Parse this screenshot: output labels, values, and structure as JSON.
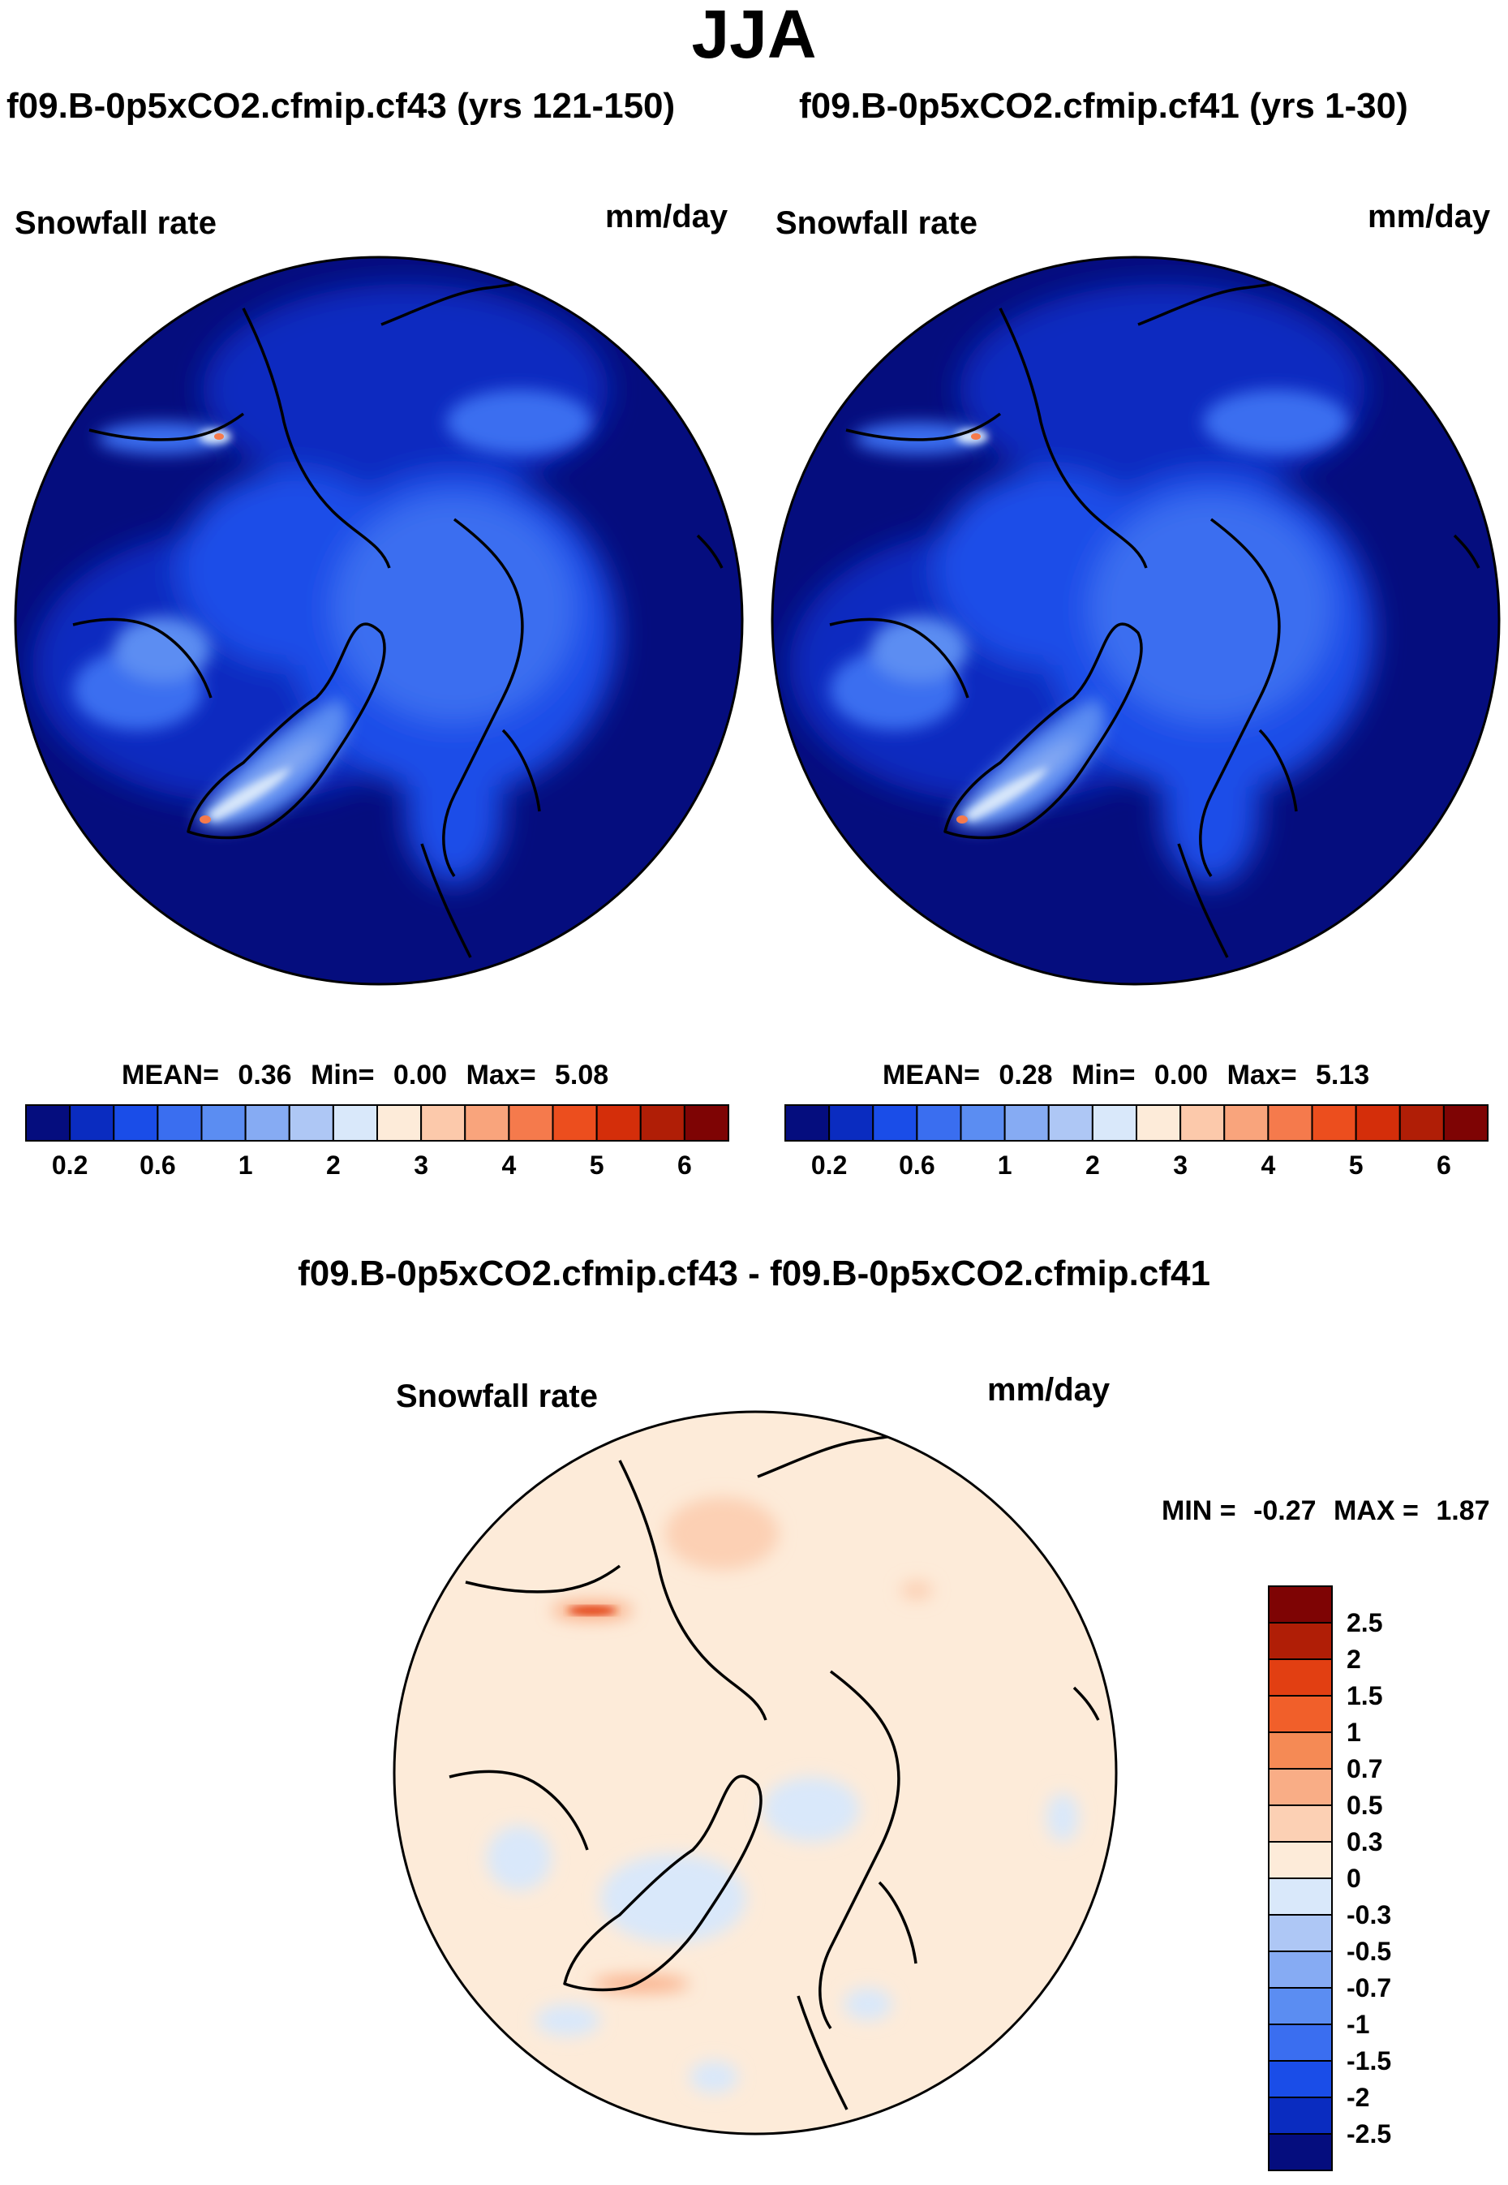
{
  "figure": {
    "season": "JJA",
    "left_title": "f09.B-0p5xCO2.cfmip.cf43 (yrs 121-150)",
    "right_title": "f09.B-0p5xCO2.cfmip.cf41 (yrs 1-30)",
    "diff_title": "f09.B-0p5xCO2.cfmip.cf43 - f09.B-0p5xCO2.cfmip.cf41"
  },
  "panels": {
    "left": {
      "variable": "Snowfall rate",
      "units": "mm/day",
      "stats": {
        "mean_label": "MEAN=",
        "mean": "0.36",
        "min_label": "Min=",
        "min": "0.00",
        "max_label": "Max=",
        "max": "5.08"
      }
    },
    "right": {
      "variable": "Snowfall rate",
      "units": "mm/day",
      "stats": {
        "mean_label": "MEAN=",
        "mean": "0.28",
        "min_label": "Min=",
        "min": "0.00",
        "max_label": "Max=",
        "max": "5.13"
      }
    },
    "diff": {
      "variable": "Snowfall rate",
      "units": "mm/day",
      "stats": {
        "min_label": "MIN =",
        "min": "-0.27",
        "max_label": "MAX =",
        "max": "1.87"
      }
    }
  },
  "colorbar_abs": {
    "colors": [
      "#050d7e",
      "#0a2cc0",
      "#1a4de8",
      "#3a6ef0",
      "#5b8df2",
      "#86abf3",
      "#aec7f5",
      "#d9e8fa",
      "#fdebd9",
      "#fcc9ab",
      "#f9a47c",
      "#f57a4c",
      "#ec4e1e",
      "#d42e0a",
      "#b01e06",
      "#7e0404"
    ],
    "tick_labels": [
      "0.2",
      "0.6",
      "1",
      "2",
      "3",
      "4",
      "5",
      "6"
    ]
  },
  "colorbar_diff": {
    "colors": [
      "#7e0404",
      "#b01e06",
      "#e23f12",
      "#f15f2a",
      "#f58a55",
      "#f9ad86",
      "#fcd0b4",
      "#fdebd9",
      "#d9e8fa",
      "#aec7f5",
      "#86abf3",
      "#5b8df2",
      "#3a6ef0",
      "#1a4de8",
      "#0a2cc0",
      "#050d7e"
    ],
    "tick_labels": [
      "2.5",
      "2",
      "1.5",
      "1",
      "0.7",
      "0.5",
      "0.3",
      "0",
      "-0.3",
      "-0.5",
      "-0.7",
      "-1",
      "-1.5",
      "-2",
      "-2.5"
    ]
  }
}
